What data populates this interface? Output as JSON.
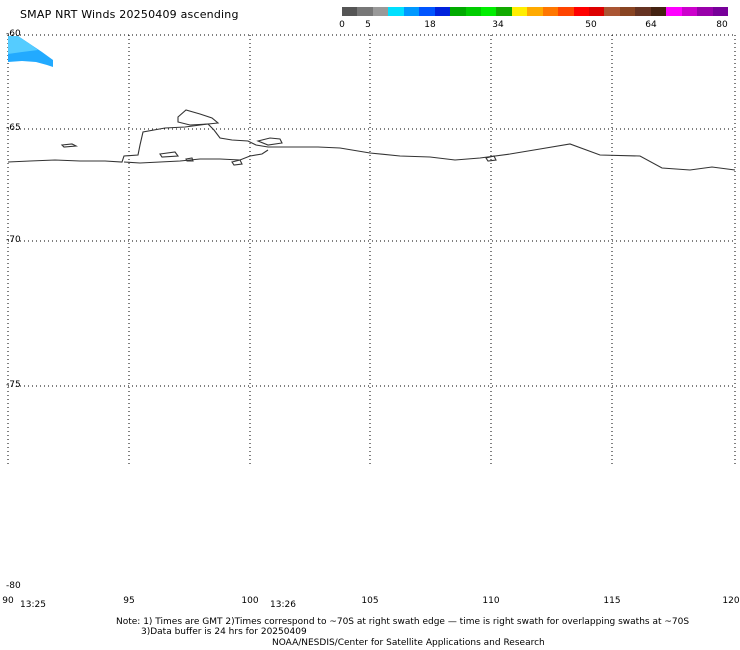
{
  "title": "SMAP NRT Winds 20250409 ascending",
  "colorbar": {
    "tick_labels": [
      "0",
      "5",
      "18",
      "34",
      "50",
      "64",
      "80"
    ],
    "colors": [
      "#555555",
      "#777777",
      "#999999",
      "#00e0ff",
      "#0099ff",
      "#0055ff",
      "#0022dd",
      "#00aa00",
      "#00cc00",
      "#00ee00",
      "#11aa00",
      "#ffee00",
      "#ffaa00",
      "#ff7700",
      "#ff4400",
      "#ff0000",
      "#dd0000",
      "#aa5533",
      "#884422",
      "#663322",
      "#442211",
      "#ff00ff",
      "#cc00cc",
      "#9900aa",
      "#770099"
    ]
  },
  "lat_labels": [
    "-60",
    "-65",
    "-70",
    "-75",
    "-80"
  ],
  "lon_labels": [
    "90",
    "95",
    "100",
    "105",
    "110",
    "115",
    "120"
  ],
  "time_labels": [
    "13:25",
    "13:26"
  ],
  "notes": {
    "line1": "Note: 1) Times are GMT 2)Times correspond to ~70S at right swath edge — time is right swath for overlapping swaths at ~70S",
    "line2": "3)Data buffer is 24 hrs for 20250409",
    "line3": "NOAA/NESDIS/Center for Satellite Applications and Research"
  }
}
